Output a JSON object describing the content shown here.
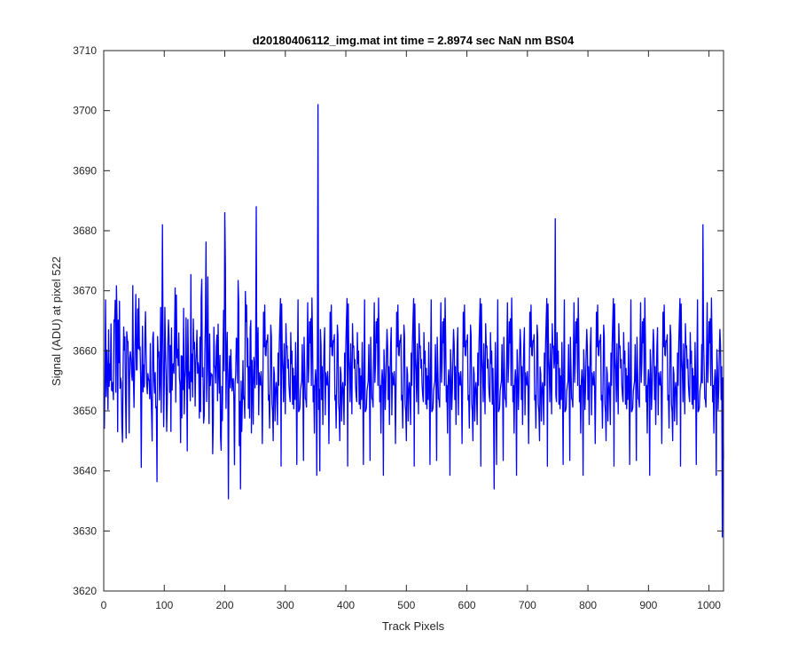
{
  "chart_data": {
    "type": "line",
    "title": "d20180406112_img.mat int time = 2.8974 sec  NaN nm BS04",
    "xlabel": "Track Pixels",
    "ylabel": "Signal (ADU) at pixel 522",
    "xlim": [
      0,
      1024
    ],
    "ylim": [
      3620,
      3710
    ],
    "xticks": [
      "0",
      "100",
      "200",
      "300",
      "400",
      "500",
      "600",
      "700",
      "800",
      "900",
      "1000"
    ],
    "yticks": [
      "3620",
      "3630",
      "3640",
      "3650",
      "3660",
      "3670",
      "3680",
      "3690",
      "3700",
      "3710"
    ],
    "grid": false,
    "series": [
      {
        "color": "#0000ff",
        "point_count": 1024,
        "x_start": 1,
        "x_step": 1,
        "y_summary": {
          "mean": 3657,
          "std": 7,
          "min": 3629,
          "max": 3701
        },
        "notable_points": [
          {
            "x": 1,
            "y": 3647
          },
          {
            "x": 97,
            "y": 3681
          },
          {
            "x": 200,
            "y": 3683
          },
          {
            "x": 226,
            "y": 3637
          },
          {
            "x": 252,
            "y": 3684
          },
          {
            "x": 354,
            "y": 3701
          },
          {
            "x": 357,
            "y": 3640
          },
          {
            "x": 645,
            "y": 3637
          },
          {
            "x": 746,
            "y": 3682
          },
          {
            "x": 990,
            "y": 3681
          },
          {
            "x": 1022,
            "y": 3629
          },
          {
            "x": 1024,
            "y": 3642
          }
        ]
      }
    ]
  }
}
